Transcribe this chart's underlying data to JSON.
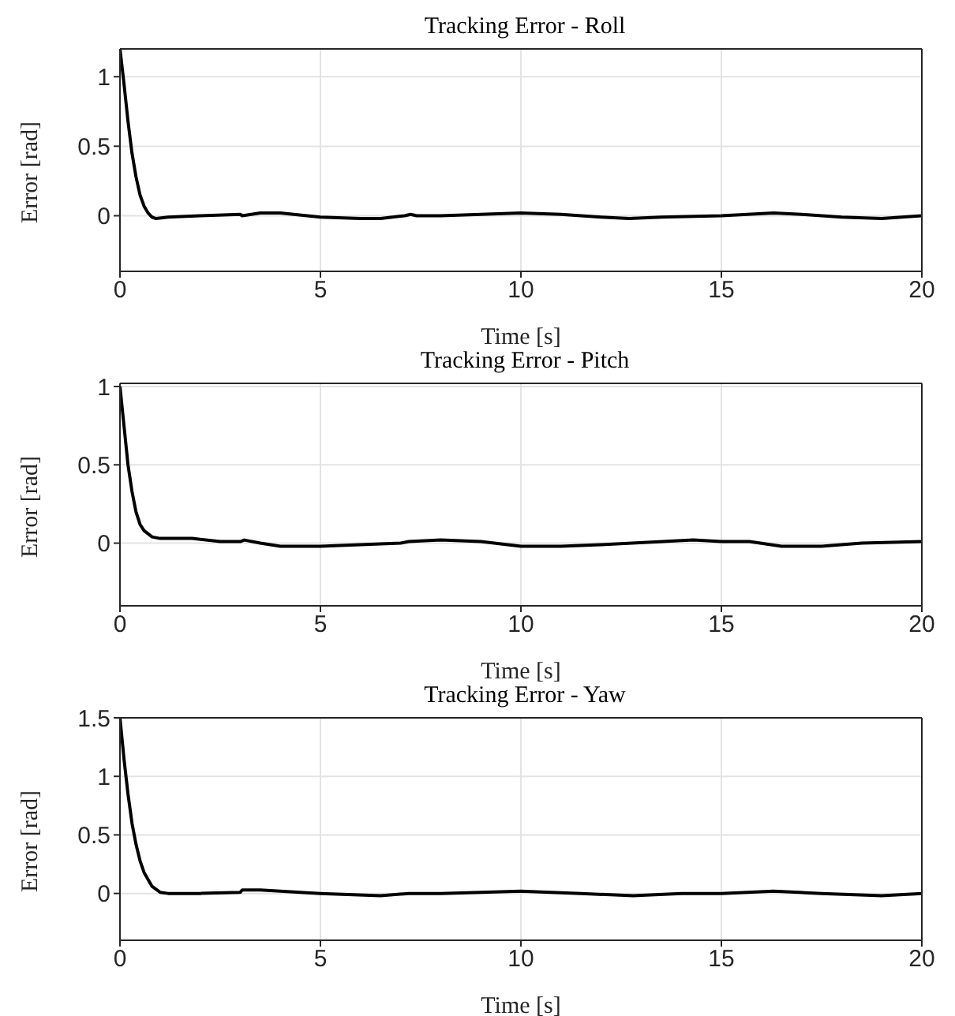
{
  "chart_data": [
    {
      "type": "line",
      "title": "Tracking Error - Roll",
      "xlabel": "Time [s]",
      "ylabel": "Error [rad]",
      "x": [
        0,
        0.1,
        0.2,
        0.3,
        0.4,
        0.5,
        0.6,
        0.7,
        0.8,
        0.9,
        1.2,
        2,
        3,
        3.05,
        3.5,
        4,
        5,
        6,
        6.5,
        7.1,
        7.25,
        7.4,
        8,
        9,
        10,
        11,
        12,
        12.7,
        13.5,
        15,
        16.3,
        17,
        18,
        19,
        20
      ],
      "series": [
        {
          "color": "#000000",
          "values": [
            1.2,
            0.95,
            0.68,
            0.45,
            0.28,
            0.15,
            0.07,
            0.02,
            -0.01,
            -0.02,
            -0.01,
            0,
            0.01,
            0,
            0.02,
            0.02,
            -0.01,
            -0.02,
            -0.02,
            0,
            0.01,
            0,
            0,
            0.01,
            0.02,
            0.01,
            -0.01,
            -0.02,
            -0.01,
            0,
            0.02,
            0.01,
            -0.01,
            -0.02,
            0
          ]
        }
      ],
      "xlim": [
        0,
        20
      ],
      "xticks": [
        0,
        5,
        10,
        15,
        20
      ],
      "ylim": [
        -0.4,
        1.2
      ],
      "yticks": [
        0,
        0.5,
        1
      ],
      "grid": true,
      "legend": false,
      "line_style": "solid",
      "marker": "none"
    },
    {
      "type": "line",
      "title": "Tracking Error - Pitch",
      "xlabel": "Time [s]",
      "ylabel": "Error [rad]",
      "x": [
        0,
        0.1,
        0.2,
        0.3,
        0.4,
        0.5,
        0.6,
        0.8,
        1,
        1.8,
        2.5,
        3,
        3.1,
        3.5,
        4,
        5,
        6,
        7,
        7.2,
        8,
        9,
        10,
        11,
        12,
        14.3,
        15,
        15.7,
        16.5,
        17.5,
        18.5,
        20
      ],
      "series": [
        {
          "color": "#000000",
          "values": [
            1,
            0.75,
            0.5,
            0.33,
            0.2,
            0.12,
            0.08,
            0.04,
            0.03,
            0.03,
            0.01,
            0.01,
            0.02,
            0,
            -0.02,
            -0.02,
            -0.01,
            0,
            0.01,
            0.02,
            0.01,
            -0.02,
            -0.02,
            -0.01,
            0.02,
            0.01,
            0.01,
            -0.02,
            -0.02,
            0,
            0.01
          ]
        }
      ],
      "xlim": [
        0,
        20
      ],
      "xticks": [
        0,
        5,
        10,
        15,
        20
      ],
      "ylim": [
        -0.4,
        1.02
      ],
      "yticks": [
        0,
        0.5,
        1
      ],
      "grid": true,
      "legend": false,
      "line_style": "solid",
      "marker": "none"
    },
    {
      "type": "line",
      "title": "Tracking Error - Yaw",
      "xlabel": "Time [s]",
      "ylabel": "Error [rad]",
      "x": [
        0,
        0.1,
        0.2,
        0.3,
        0.4,
        0.5,
        0.6,
        0.8,
        1,
        1.2,
        2,
        3,
        3.05,
        3.5,
        5,
        6.5,
        7.2,
        8,
        9,
        10,
        11.5,
        12.8,
        14,
        15,
        16.3,
        17.5,
        19,
        20
      ],
      "series": [
        {
          "color": "#000000",
          "values": [
            1.5,
            1.15,
            0.85,
            0.6,
            0.42,
            0.28,
            0.18,
            0.06,
            0.01,
            0,
            0,
            0.01,
            0.03,
            0.03,
            0,
            -0.02,
            0,
            0,
            0.01,
            0.02,
            0,
            -0.02,
            0,
            0,
            0.02,
            0,
            -0.02,
            0
          ]
        }
      ],
      "xlim": [
        0,
        20
      ],
      "xticks": [
        0,
        5,
        10,
        15,
        20
      ],
      "ylim": [
        -0.4,
        1.5
      ],
      "yticks": [
        0,
        0.5,
        1,
        1.5
      ],
      "grid": true,
      "legend": false,
      "line_style": "solid",
      "marker": "none"
    }
  ]
}
